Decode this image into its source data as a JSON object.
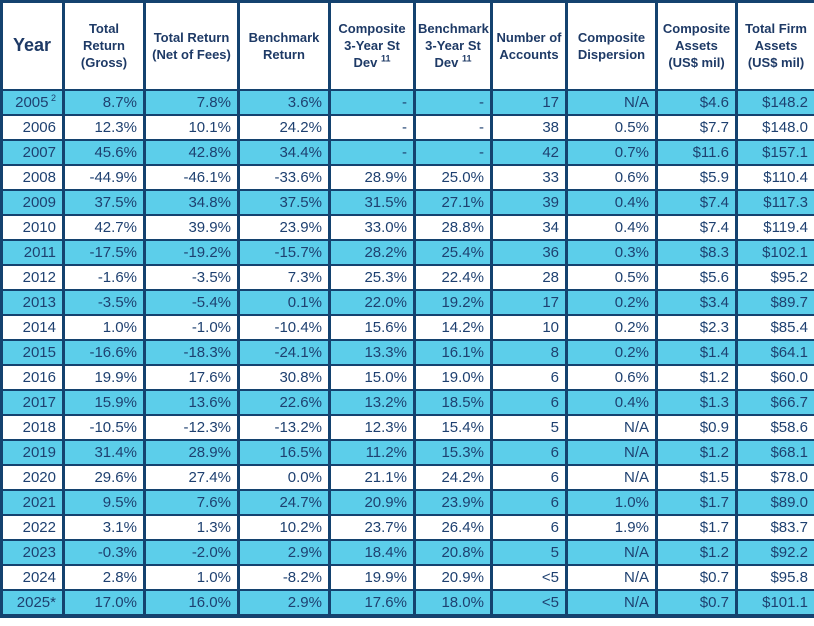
{
  "colors": {
    "row_shaded": "#5cceea",
    "row_plain": "#ffffff",
    "border": "#14426f",
    "header_text": "#1e3a66",
    "cell_text": "#1e4070"
  },
  "table": {
    "columns": [
      {
        "id": "year",
        "label": "Year",
        "lines": [
          "Year"
        ],
        "sup": null
      },
      {
        "id": "total-return-gross",
        "label": "Total Return (Gross)",
        "lines": [
          "Total",
          "Return",
          "(Gross)"
        ],
        "sup": null
      },
      {
        "id": "total-return-net",
        "label": "Total Return (Net of Fees)",
        "lines": [
          "Total Return",
          "(Net of Fees)"
        ],
        "sup": null
      },
      {
        "id": "benchmark-return",
        "label": "Benchmark Return",
        "lines": [
          "Benchmark",
          "Return"
        ],
        "sup": null
      },
      {
        "id": "composite-3yr-st-dev",
        "label": "Composite 3-Year St Dev",
        "lines": [
          "Composite",
          "3-Year St",
          "Dev"
        ],
        "sup": "11"
      },
      {
        "id": "benchmark-3yr-st-dev",
        "label": "Benchmark 3-Year St Dev",
        "lines": [
          "Benchmark",
          "3-Year St",
          "Dev"
        ],
        "sup": "11"
      },
      {
        "id": "number-of-accounts",
        "label": "Number of Accounts",
        "lines": [
          "Number of",
          "Accounts"
        ],
        "sup": null
      },
      {
        "id": "composite-dispersion",
        "label": "Composite Dispersion",
        "lines": [
          "Composite",
          "Dispersion"
        ],
        "sup": null
      },
      {
        "id": "composite-assets",
        "label": "Composite Assets (US$ mil)",
        "lines": [
          "Composite",
          "Assets",
          "(US$ mil)"
        ],
        "sup": null
      },
      {
        "id": "total-firm-assets",
        "label": "Total Firm Assets (US$ mil)",
        "lines": [
          "Total Firm",
          "Assets",
          "(US$ mil)"
        ],
        "sup": null
      }
    ],
    "rows": [
      {
        "year": "2005",
        "year_sup": "2",
        "values": [
          "8.7%",
          "7.8%",
          "3.6%",
          "-",
          "-",
          "17",
          "N/A",
          "$4.6",
          "$148.2"
        ]
      },
      {
        "year": "2006",
        "year_sup": null,
        "values": [
          "12.3%",
          "10.1%",
          "24.2%",
          "-",
          "-",
          "38",
          "0.5%",
          "$7.7",
          "$148.0"
        ]
      },
      {
        "year": "2007",
        "year_sup": null,
        "values": [
          "45.6%",
          "42.8%",
          "34.4%",
          "-",
          "-",
          "42",
          "0.7%",
          "$11.6",
          "$157.1"
        ]
      },
      {
        "year": "2008",
        "year_sup": null,
        "values": [
          "-44.9%",
          "-46.1%",
          "-33.6%",
          "28.9%",
          "25.0%",
          "33",
          "0.6%",
          "$5.9",
          "$110.4"
        ]
      },
      {
        "year": "2009",
        "year_sup": null,
        "values": [
          "37.5%",
          "34.8%",
          "37.5%",
          "31.5%",
          "27.1%",
          "39",
          "0.4%",
          "$7.4",
          "$117.3"
        ]
      },
      {
        "year": "2010",
        "year_sup": null,
        "values": [
          "42.7%",
          "39.9%",
          "23.9%",
          "33.0%",
          "28.8%",
          "34",
          "0.4%",
          "$7.4",
          "$119.4"
        ]
      },
      {
        "year": "2011",
        "year_sup": null,
        "values": [
          "-17.5%",
          "-19.2%",
          "-15.7%",
          "28.2%",
          "25.4%",
          "36",
          "0.3%",
          "$8.3",
          "$102.1"
        ]
      },
      {
        "year": "2012",
        "year_sup": null,
        "values": [
          "-1.6%",
          "-3.5%",
          "7.3%",
          "25.3%",
          "22.4%",
          "28",
          "0.5%",
          "$5.6",
          "$95.2"
        ]
      },
      {
        "year": "2013",
        "year_sup": null,
        "values": [
          "-3.5%",
          "-5.4%",
          "0.1%",
          "22.0%",
          "19.2%",
          "17",
          "0.2%",
          "$3.4",
          "$89.7"
        ]
      },
      {
        "year": "2014",
        "year_sup": null,
        "values": [
          "1.0%",
          "-1.0%",
          "-10.4%",
          "15.6%",
          "14.2%",
          "10",
          "0.2%",
          "$2.3",
          "$85.4"
        ]
      },
      {
        "year": "2015",
        "year_sup": null,
        "values": [
          "-16.6%",
          "-18.3%",
          "-24.1%",
          "13.3%",
          "16.1%",
          "8",
          "0.2%",
          "$1.4",
          "$64.1"
        ]
      },
      {
        "year": "2016",
        "year_sup": null,
        "values": [
          "19.9%",
          "17.6%",
          "30.8%",
          "15.0%",
          "19.0%",
          "6",
          "0.6%",
          "$1.2",
          "$60.0"
        ]
      },
      {
        "year": "2017",
        "year_sup": null,
        "values": [
          "15.9%",
          "13.6%",
          "22.6%",
          "13.2%",
          "18.5%",
          "6",
          "0.4%",
          "$1.3",
          "$66.7"
        ]
      },
      {
        "year": "2018",
        "year_sup": null,
        "values": [
          "-10.5%",
          "-12.3%",
          "-13.2%",
          "12.3%",
          "15.4%",
          "5",
          "N/A",
          "$0.9",
          "$58.6"
        ]
      },
      {
        "year": "2019",
        "year_sup": null,
        "values": [
          "31.4%",
          "28.9%",
          "16.5%",
          "11.2%",
          "15.3%",
          "6",
          "N/A",
          "$1.2",
          "$68.1"
        ]
      },
      {
        "year": "2020",
        "year_sup": null,
        "values": [
          "29.6%",
          "27.4%",
          "0.0%",
          "21.1%",
          "24.2%",
          "6",
          "N/A",
          "$1.5",
          "$78.0"
        ]
      },
      {
        "year": "2021",
        "year_sup": null,
        "values": [
          "9.5%",
          "7.6%",
          "24.7%",
          "20.9%",
          "23.9%",
          "6",
          "1.0%",
          "$1.7",
          "$89.0"
        ]
      },
      {
        "year": "2022",
        "year_sup": null,
        "values": [
          "3.1%",
          "1.3%",
          "10.2%",
          "23.7%",
          "26.4%",
          "6",
          "1.9%",
          "$1.7",
          "$83.7"
        ]
      },
      {
        "year": "2023",
        "year_sup": null,
        "values": [
          "-0.3%",
          "-2.0%",
          "2.9%",
          "18.4%",
          "20.8%",
          "5",
          "N/A",
          "$1.2",
          "$92.2"
        ]
      },
      {
        "year": "2024",
        "year_sup": null,
        "values": [
          "2.8%",
          "1.0%",
          "-8.2%",
          "19.9%",
          "20.9%",
          "<5",
          "N/A",
          "$0.7",
          "$95.8"
        ]
      },
      {
        "year": "2025*",
        "year_sup": null,
        "values": [
          "17.0%",
          "16.0%",
          "2.9%",
          "17.6%",
          "18.0%",
          "<5",
          "N/A",
          "$0.7",
          "$101.1"
        ]
      }
    ]
  }
}
